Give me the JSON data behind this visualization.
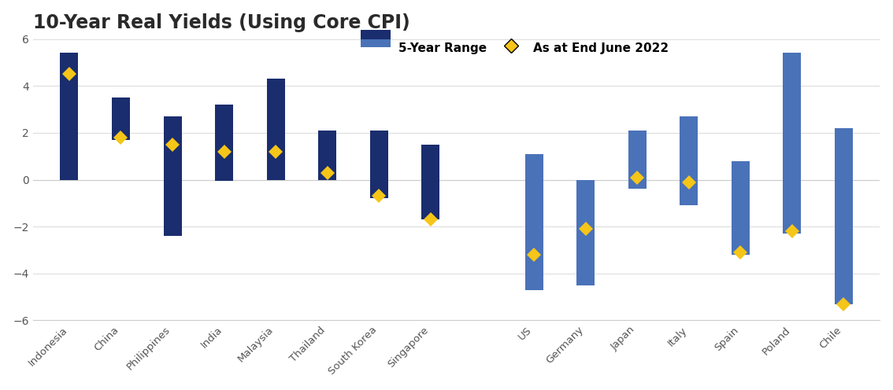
{
  "title": "10-Year Real Yields (Using Core CPI)",
  "categories": [
    "Indonesia",
    "China",
    "Philippines",
    "India",
    "Malaysia",
    "Thailand",
    "South Korea",
    "Singapore",
    "",
    "US",
    "Germany",
    "Japan",
    "Italy",
    "Spain",
    "Poland",
    "Chile"
  ],
  "bar_low": [
    0.0,
    1.7,
    -2.4,
    -0.05,
    0.0,
    0.0,
    -0.8,
    -1.7,
    null,
    -4.7,
    -4.5,
    -0.4,
    -1.1,
    -3.2,
    -2.3,
    -5.3
  ],
  "bar_high": [
    5.4,
    3.5,
    2.7,
    3.2,
    4.3,
    2.1,
    2.1,
    1.5,
    null,
    1.1,
    0.0,
    2.1,
    2.7,
    0.8,
    5.4,
    2.2
  ],
  "point": [
    4.5,
    1.8,
    1.5,
    1.2,
    1.2,
    0.3,
    -0.7,
    -1.7,
    null,
    -3.2,
    -2.1,
    0.1,
    -0.1,
    -3.1,
    -2.2,
    -5.3
  ],
  "is_dark": [
    true,
    true,
    true,
    true,
    true,
    true,
    true,
    true,
    null,
    false,
    false,
    false,
    false,
    false,
    false,
    false
  ],
  "bar_color_dark": "#1a2d6e",
  "bar_color_light": "#4a72b8",
  "point_color": "#f5c518",
  "ylim": [
    -6,
    6
  ],
  "yticks": [
    -6,
    -4,
    -2,
    0,
    2,
    4,
    6
  ],
  "title_fontsize": 17,
  "background_color": "#ffffff",
  "legend_range_label": "5-Year Range",
  "legend_point_label": "As at End June 2022",
  "bar_width": 0.35
}
